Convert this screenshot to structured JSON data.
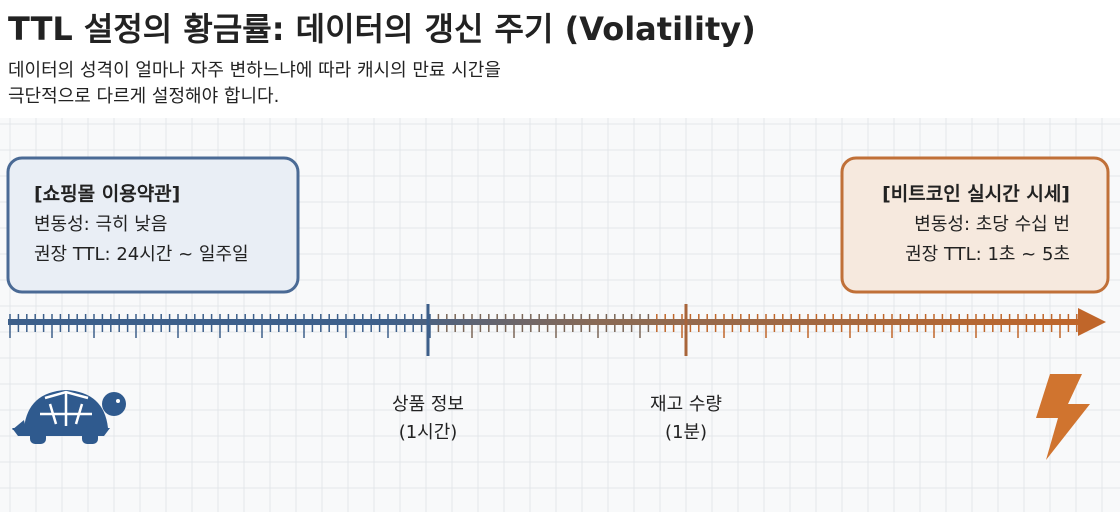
{
  "header": {
    "title": "TTL 설정의 황금률: 데이터의 갱신 주기 (Volatility)",
    "subtitle_lines": [
      "데이터의 성격이 얼마나 자주 변하느냐에 따라 캐시의 만료 시간을",
      "극단적으로 다르게 설정해야 합니다."
    ]
  },
  "boxes": [
    {
      "title": "[쇼핑몰 이용약관]",
      "lines": [
        "변동성: 극히 낮음",
        "권장 TTL: 24시간 ~ 일주일"
      ]
    },
    {
      "title": "[비트코인 실시간 시세]",
      "lines": [
        "변동성: 초당 수십 번",
        "권장 TTL: 1초 ~ 5초"
      ]
    }
  ],
  "markers": [
    {
      "label": "상품 정보",
      "ttl": "(1시간)"
    },
    {
      "label": "재고 수량",
      "ttl": "(1분)"
    }
  ]
}
